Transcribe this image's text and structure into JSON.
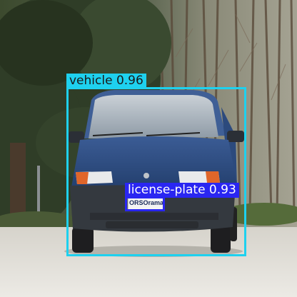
{
  "image": {
    "description": "Photo of a small blue hatchback car parked on white gravel in front of dark evergreen trees and bare deciduous woods, with object-detection bounding boxes overlaid"
  },
  "colors": {
    "vehicle_box": "#1ed1ef",
    "plate_box": "#2a26f2",
    "car_body": "#2f4f86",
    "gravel": "#e4e2dc"
  },
  "detections": [
    {
      "id": "vehicle",
      "label_text": "vehicle 0.96",
      "class": "vehicle",
      "confidence": 0.96
    },
    {
      "id": "plate",
      "label_text": "license-plate 0.93",
      "class": "license-plate",
      "confidence": 0.93
    }
  ],
  "plate_text": "ORSOrama"
}
